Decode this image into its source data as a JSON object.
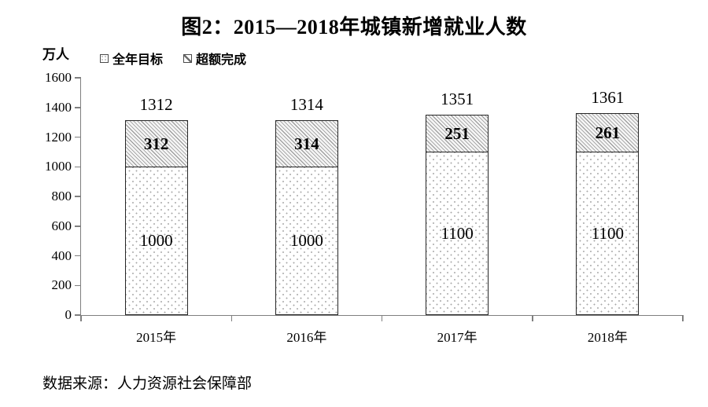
{
  "title": "图2：2015—2018年城镇新增就业人数",
  "y_axis_unit": "万人",
  "legend": {
    "items": [
      {
        "label": "全年目标",
        "swatch": "dotted-pattern"
      },
      {
        "label": "超额完成",
        "swatch": "diagonal-hatch-pattern"
      }
    ]
  },
  "source_note": "数据来源：人力资源社会保障部",
  "colors": {
    "text": "#000000",
    "axis": "#7f7f7f",
    "bar_border": "#262626",
    "hatch_line": "#8f8f8f",
    "dot": "#a8a8a8",
    "background": "#ffffff"
  },
  "chart_data": {
    "type": "bar",
    "stacked": true,
    "title": "图2：2015—2018年城镇新增就业人数",
    "ylabel": "万人",
    "categories": [
      "2015年",
      "2016年",
      "2017年",
      "2018年"
    ],
    "series": [
      {
        "name": "全年目标",
        "pattern": "dotted",
        "values": [
          1000,
          1000,
          1100,
          1100
        ]
      },
      {
        "name": "超额完成",
        "pattern": "diagonal-hatch",
        "values": [
          312,
          314,
          251,
          261
        ]
      }
    ],
    "totals": [
      1312,
      1314,
      1351,
      1361
    ],
    "ylim": [
      0,
      1600
    ],
    "yticks": [
      0,
      200,
      400,
      600,
      800,
      1000,
      1200,
      1400,
      1600
    ],
    "grid": false,
    "legend_position": "top-left"
  }
}
